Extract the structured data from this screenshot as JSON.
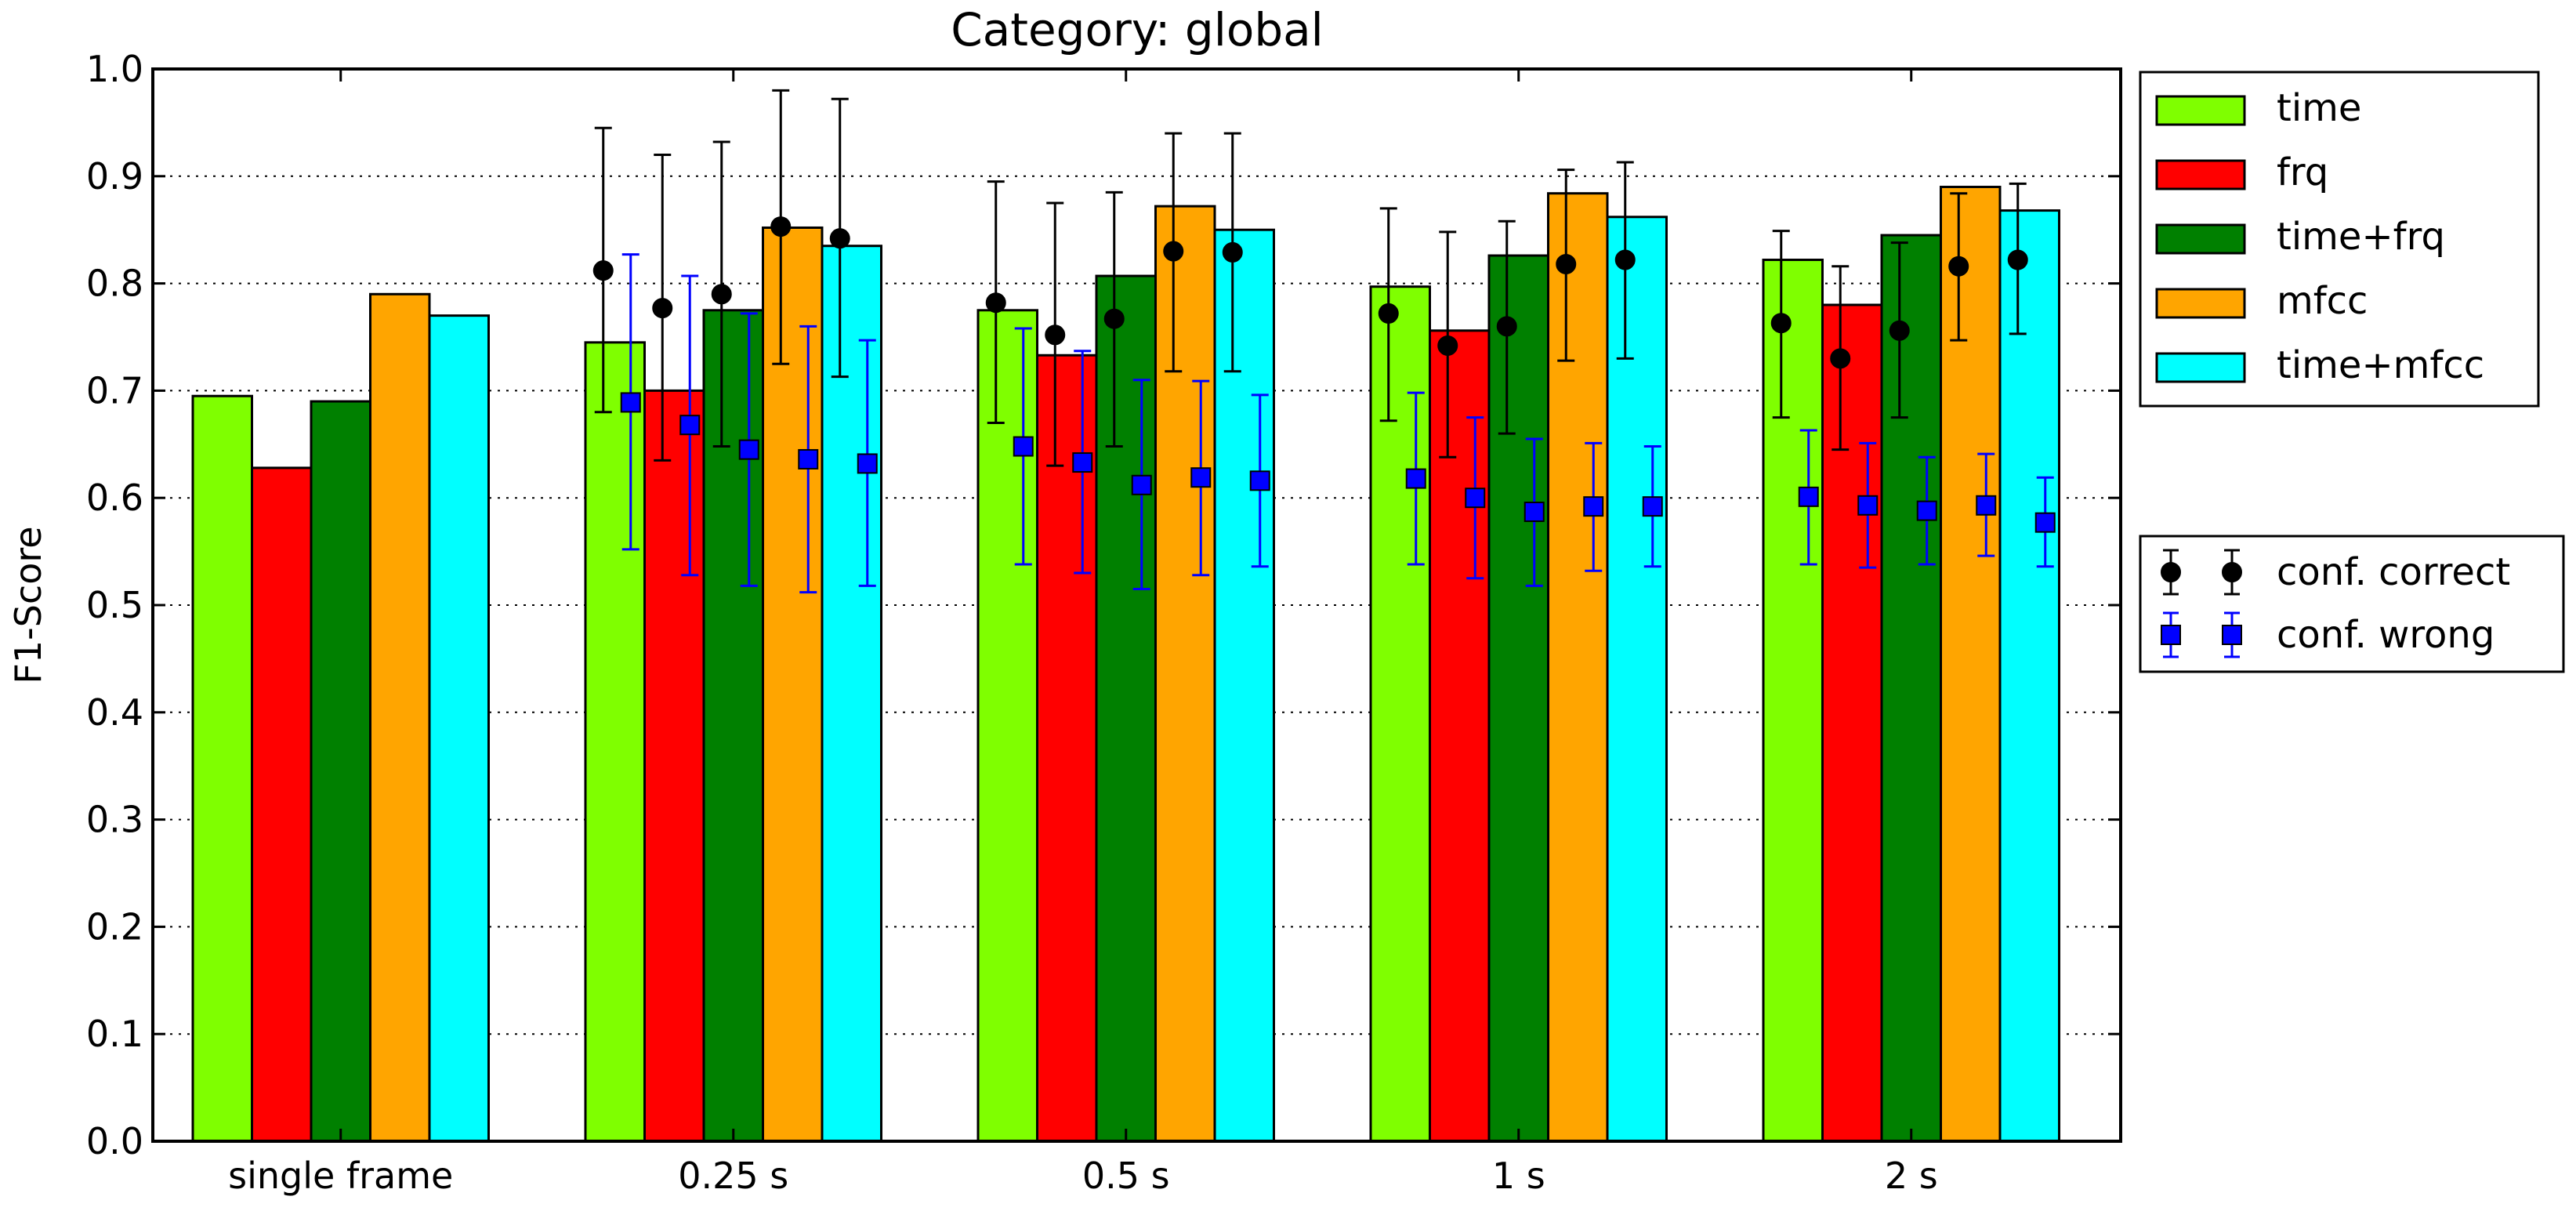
{
  "chart_data": {
    "type": "bar",
    "title": "Category: global",
    "xlabel": "",
    "ylabel": "F1-Score",
    "ylim": [
      0,
      1.0
    ],
    "y_ticks": [
      "0.0",
      "0.1",
      "0.2",
      "0.3",
      "0.4",
      "0.5",
      "0.6",
      "0.7",
      "0.8",
      "0.9",
      "1.0"
    ],
    "grid": "horizontal dotted",
    "categories": [
      "single frame",
      "0.25 s",
      "0.5 s",
      "1 s",
      "2 s"
    ],
    "series": [
      {
        "name": "time",
        "color": "#7fff00",
        "values": [
          0.695,
          0.745,
          0.775,
          0.797,
          0.822
        ]
      },
      {
        "name": "frq",
        "color": "#ff0000",
        "values": [
          0.628,
          0.7,
          0.733,
          0.756,
          0.78
        ]
      },
      {
        "name": "time+frq",
        "color": "#008000",
        "values": [
          0.69,
          0.775,
          0.807,
          0.826,
          0.845
        ]
      },
      {
        "name": "mfcc",
        "color": "#ffa500",
        "values": [
          0.79,
          0.852,
          0.872,
          0.884,
          0.89
        ]
      },
      {
        "name": "time+mfcc",
        "color": "#00ffff",
        "values": [
          0.77,
          0.835,
          0.85,
          0.862,
          0.868
        ]
      }
    ],
    "error_series": [
      {
        "name": "conf. correct",
        "marker": "circle",
        "color": "#000000",
        "values": [
          [
            null,
            0.812,
            0.777,
            0.79,
            0.853,
            0.842
          ],
          [
            null,
            0.782,
            0.752,
            0.767,
            0.83,
            0.829
          ],
          [
            null,
            0.772,
            0.742,
            0.76,
            0.818,
            0.822
          ],
          [
            null,
            0.763,
            0.73,
            0.756,
            0.816,
            0.822
          ]
        ],
        "points": [
          {
            "category": "0.25 s",
            "values": [
              0.812,
              0.777,
              0.79,
              0.853,
              0.842
            ],
            "lower": [
              0.68,
              0.635,
              0.648,
              0.725,
              0.713
            ],
            "upper": [
              0.945,
              0.92,
              0.932,
              0.98,
              0.972
            ]
          },
          {
            "category": "0.5 s",
            "values": [
              0.782,
              0.752,
              0.767,
              0.83,
              0.829
            ],
            "lower": [
              0.67,
              0.63,
              0.648,
              0.718,
              0.718
            ],
            "upper": [
              0.895,
              0.875,
              0.885,
              0.94,
              0.94
            ]
          },
          {
            "category": "1 s",
            "values": [
              0.772,
              0.742,
              0.76,
              0.818,
              0.822
            ],
            "lower": [
              0.672,
              0.638,
              0.66,
              0.728,
              0.73
            ],
            "upper": [
              0.87,
              0.848,
              0.858,
              0.906,
              0.913
            ]
          },
          {
            "category": "2 s",
            "values": [
              0.763,
              0.73,
              0.756,
              0.816,
              0.822
            ],
            "lower": [
              0.675,
              0.645,
              0.675,
              0.747,
              0.753
            ],
            "upper": [
              0.849,
              0.816,
              0.838,
              0.884,
              0.893
            ]
          }
        ]
      },
      {
        "name": "conf. wrong",
        "marker": "square",
        "color": "#0000ff",
        "points": [
          {
            "category": "0.25 s",
            "values": [
              0.689,
              0.668,
              0.645,
              0.636,
              0.632
            ],
            "lower": [
              0.552,
              0.528,
              0.518,
              0.512,
              0.518
            ],
            "upper": [
              0.827,
              0.807,
              0.772,
              0.76,
              0.747
            ]
          },
          {
            "category": "0.5 s",
            "values": [
              0.648,
              0.633,
              0.612,
              0.619,
              0.616
            ],
            "lower": [
              0.538,
              0.53,
              0.515,
              0.528,
              0.536
            ],
            "upper": [
              0.758,
              0.737,
              0.71,
              0.709,
              0.696
            ]
          },
          {
            "category": "1 s",
            "values": [
              0.618,
              0.6,
              0.587,
              0.592,
              0.592
            ],
            "lower": [
              0.538,
              0.525,
              0.518,
              0.532,
              0.536
            ],
            "upper": [
              0.698,
              0.675,
              0.655,
              0.651,
              0.648
            ]
          },
          {
            "category": "2 s",
            "values": [
              0.601,
              0.593,
              0.588,
              0.593,
              0.577
            ],
            "lower": [
              0.538,
              0.535,
              0.538,
              0.546,
              0.536
            ],
            "upper": [
              0.663,
              0.651,
              0.638,
              0.641,
              0.619
            ]
          }
        ]
      }
    ],
    "legend": {
      "bars": "top-right outside",
      "markers": "right outside"
    }
  }
}
